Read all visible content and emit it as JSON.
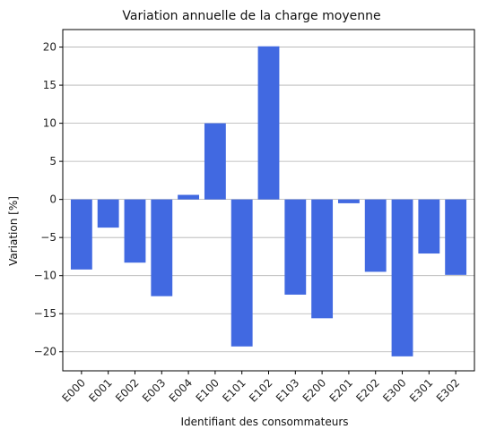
{
  "chart_data": {
    "type": "bar",
    "title": "Variation annuelle de la charge moyenne",
    "xlabel": "Identifiant des consommateurs",
    "ylabel": "Variation [%]",
    "categories": [
      "E000",
      "E001",
      "E002",
      "E003",
      "E004",
      "E100",
      "E101",
      "E102",
      "E103",
      "E200",
      "E201",
      "E202",
      "E300",
      "E301",
      "E302"
    ],
    "values": [
      -9.2,
      -3.7,
      -8.3,
      -12.7,
      0.6,
      10.0,
      -19.3,
      20.1,
      -12.5,
      -15.6,
      -0.5,
      -9.5,
      -20.6,
      -7.1,
      -9.9
    ],
    "ylim": [
      -22.5,
      22.3
    ],
    "yticks": [
      -20,
      -15,
      -10,
      -5,
      0,
      5,
      10,
      15,
      20
    ],
    "grid": "y",
    "bar_color": "#4169e1"
  }
}
